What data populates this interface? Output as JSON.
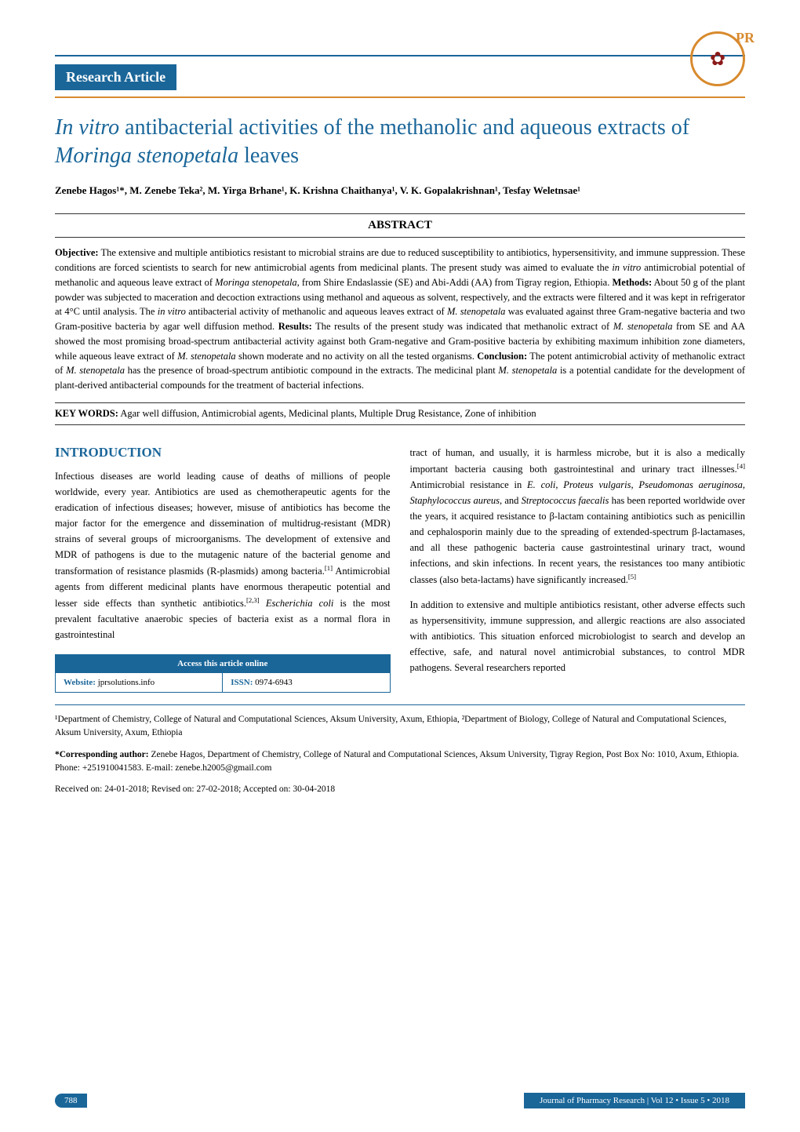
{
  "colors": {
    "primary": "#1a6699",
    "accent": "#d88a2e",
    "text": "#000000",
    "background": "#ffffff"
  },
  "typography": {
    "body_fontsize": 12.5,
    "title_fontsize": 28,
    "heading_fontsize": 17,
    "footer_fontsize": 11,
    "line_height": 1.6
  },
  "logo": {
    "text": "PR",
    "border_color": "#d88a2e",
    "text_color": "#d88a2e"
  },
  "section_tag": "Research Article",
  "article": {
    "title_html": "<em>In vitro</em> antibacterial activities of the methanolic and aqueous extracts of <em>Moringa stenopetala</em> leaves",
    "authors": "Zenebe Hagos¹*, M. Zenebe Teka², M. Yirga Brhane¹, K. Krishna Chaithanya¹, V. K. Gopalakrishnan¹, Tesfay Weletnsae¹"
  },
  "abstract": {
    "heading": "ABSTRACT",
    "body_html": "<strong>Objective:</strong> The extensive and multiple antibiotics resistant to microbial strains are due to reduced susceptibility to antibiotics, hypersensitivity, and immune suppression. These conditions are forced scientists to search for new antimicrobial agents from medicinal plants. The present study was aimed to evaluate the <em>in vitro</em> antimicrobial potential of methanolic and aqueous leave extract of <em>Moringa stenopetala</em>, from Shire Endaslassie (SE) and Abi-Addi (AA) from Tigray region, Ethiopia. <strong>Methods:</strong> About 50 g of the plant powder was subjected to maceration and decoction extractions using methanol and aqueous as solvent, respectively, and the extracts were filtered and it was kept in refrigerator at 4°C until analysis. The <em>in vitro</em> antibacterial activity of methanolic and aqueous leaves extract of <em>M. stenopetala</em> was evaluated against three Gram-negative bacteria and two Gram-positive bacteria by agar well diffusion method. <strong>Results:</strong> The results of the present study was indicated that methanolic extract of <em>M. stenopetala</em> from SE and AA showed the most promising broad-spectrum antibacterial activity against both Gram-negative and Gram-positive bacteria by exhibiting maximum inhibition zone diameters, while aqueous leave extract of <em>M. stenopetala</em> shown moderate and no activity on all the tested organisms. <strong>Conclusion:</strong> The potent antimicrobial activity of methanolic extract of <em>M. stenopetala</em> has the presence of broad-spectrum antibiotic compound in the extracts. The medicinal plant <em>M. stenopetala</em> is a potential candidate for the development of plant-derived antibacterial compounds for the treatment of bacterial infections.",
    "keywords_label": "KEY WORDS:",
    "keywords": "Agar well diffusion, Antimicrobial agents, Medicinal plants, Multiple Drug Resistance, Zone of inhibition"
  },
  "introduction": {
    "heading": "INTRODUCTION",
    "col1_para1_html": "Infectious diseases are world leading cause of deaths of millions of people worldwide, every year. Antibiotics are used as chemotherapeutic agents for the eradication of infectious diseases; however, misuse of antibiotics has become the major factor for the emergence and dissemination of multidrug-resistant (MDR) strains of several groups of microorganisms. The development of extensive and MDR of pathogens is due to the mutagenic nature of the bacterial genome and transformation of resistance plasmids (R-plasmids) among bacteria.<sup>[1]</sup> Antimicrobial agents from different medicinal plants have enormous therapeutic potential and lesser side effects than synthetic antibiotics.<sup>[2,3]</sup> <em>Escherichia coli</em> is the most prevalent facultative anaerobic species of bacteria exist as a normal flora in gastrointestinal",
    "col2_para1_html": "tract of human, and usually, it is harmless microbe, but it is also a medically important bacteria causing both gastrointestinal and urinary tract illnesses.<sup>[4]</sup> Antimicrobial resistance in <em>E. coli, Proteus vulgaris</em>, <em>Pseudomonas aeruginosa, Staphylococcus aureus,</em> and <em>Streptococcus faecalis</em> has been reported worldwide over the years, it acquired resistance to β-lactam containing antibiotics such as penicillin and cephalosporin mainly due to the spreading of extended-spectrum β-lactamases, and all these pathogenic bacteria cause gastrointestinal urinary tract, wound infections, and skin infections. In recent years, the resistances too many antibiotic classes (also beta-lactams) have significantly increased.<sup>[5]</sup>",
    "col2_para2_html": "In addition to extensive and multiple antibiotics resistant, other adverse effects such as hypersensitivity, immune suppression, and allergic reactions are also associated with antibiotics. This situation enforced microbiologist to search and develop an effective, safe, and natural novel antimicrobial substances, to control MDR pathogens. Several researchers reported"
  },
  "access_box": {
    "header": "Access this article online",
    "website_label": "Website:",
    "website_value": "jprsolutions.info",
    "issn_label": "ISSN:",
    "issn_value": "0974-6943"
  },
  "affiliations": "¹Department of Chemistry, College of Natural and Computational Sciences, Aksum University, Axum, Ethiopia, ²Department of Biology, College of Natural and Computational Sciences, Aksum University, Axum, Ethiopia",
  "corresponding": {
    "label": "*Corresponding author:",
    "text": "Zenebe Hagos, Department of Chemistry, College of Natural and Computational Sciences, Aksum University, Tigray Region, Post Box No: 1010, Axum, Ethiopia. Phone: +251910041583. E-mail: zenebe.h2005@gmail.com"
  },
  "dates": "Received on: 24-01-2018; Revised on: 27-02-2018; Accepted on: 30-04-2018",
  "footer": {
    "page_number": "788",
    "journal": "Journal of Pharmacy Research | Vol 12 • Issue 5 • 2018"
  }
}
